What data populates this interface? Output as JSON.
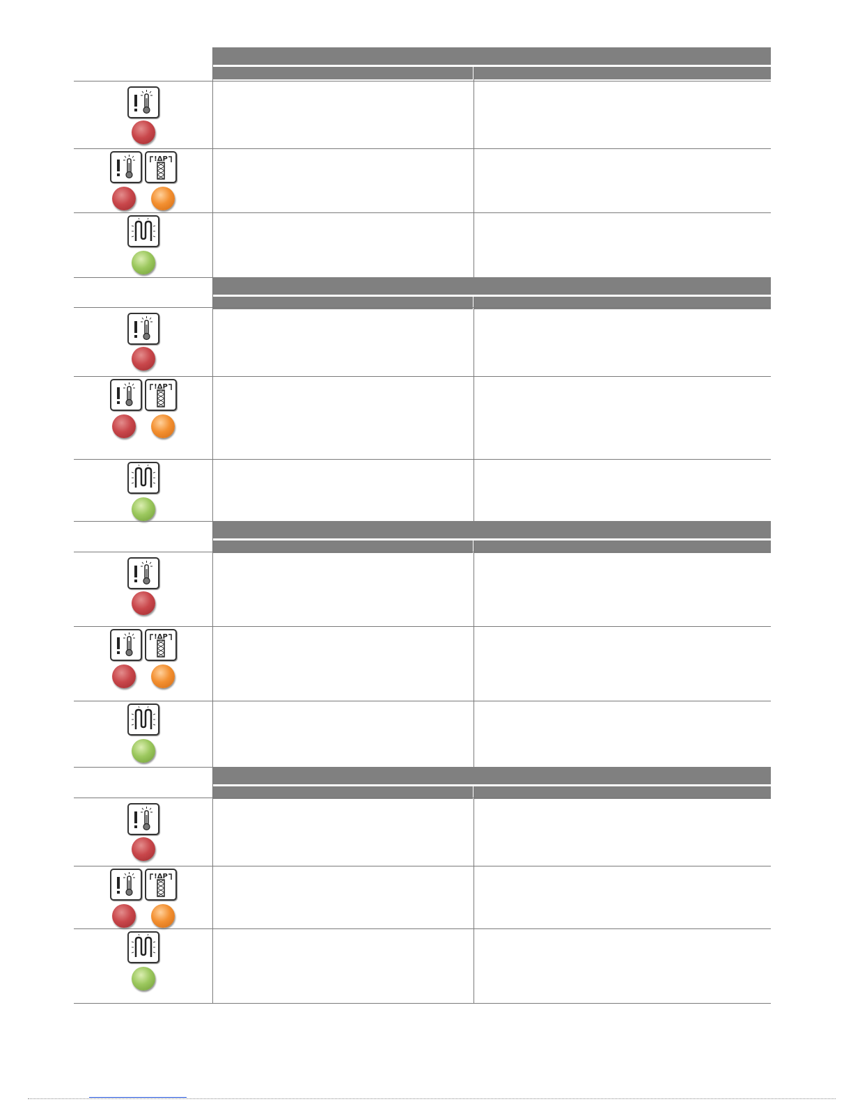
{
  "colors": {
    "header_bar": "#808080",
    "led_red": "#c9474b",
    "led_orange": "#f39031",
    "led_green": "#9cc85e"
  },
  "sections": [
    {
      "title": "",
      "col1_header": "",
      "col2_header": "",
      "rows": [
        {
          "icons": [
            "temperature-alarm-icon"
          ],
          "leds": [
            "red"
          ],
          "col1": "",
          "col2": ""
        },
        {
          "icons": [
            "temperature-alarm-icon",
            "filter-pressure-icon"
          ],
          "leds": [
            "red",
            "orange"
          ],
          "col1": "",
          "col2": ""
        },
        {
          "icons": [
            "heater-icon"
          ],
          "leds": [
            "green"
          ],
          "col1": "",
          "col2": ""
        }
      ]
    },
    {
      "title": "",
      "col1_header": "",
      "col2_header": "",
      "rows": [
        {
          "icons": [
            "temperature-alarm-icon"
          ],
          "leds": [
            "red"
          ],
          "col1": "",
          "col2": ""
        },
        {
          "icons": [
            "temperature-alarm-icon",
            "filter-pressure-icon"
          ],
          "leds": [
            "red",
            "orange"
          ],
          "col1": "",
          "col2": ""
        },
        {
          "icons": [
            "heater-icon"
          ],
          "leds": [
            "green"
          ],
          "col1": "",
          "col2": ""
        }
      ]
    },
    {
      "title": "",
      "col1_header": "",
      "col2_header": "",
      "rows": [
        {
          "icons": [
            "temperature-alarm-icon"
          ],
          "leds": [
            "red"
          ],
          "col1": "",
          "col2": ""
        },
        {
          "icons": [
            "temperature-alarm-icon",
            "filter-pressure-icon"
          ],
          "leds": [
            "red",
            "orange"
          ],
          "col1": "",
          "col2": ""
        },
        {
          "icons": [
            "heater-icon"
          ],
          "leds": [
            "green"
          ],
          "col1": "",
          "col2": ""
        }
      ]
    },
    {
      "title": "",
      "col1_header": "",
      "col2_header": "",
      "rows": [
        {
          "icons": [
            "temperature-alarm-icon"
          ],
          "leds": [
            "red"
          ],
          "col1": "",
          "col2": ""
        },
        {
          "icons": [
            "temperature-alarm-icon",
            "filter-pressure-icon"
          ],
          "leds": [
            "red",
            "orange"
          ],
          "col1": "",
          "col2": ""
        },
        {
          "icons": [
            "heater-icon"
          ],
          "leds": [
            "green"
          ],
          "col1": "",
          "col2": ""
        }
      ]
    }
  ]
}
